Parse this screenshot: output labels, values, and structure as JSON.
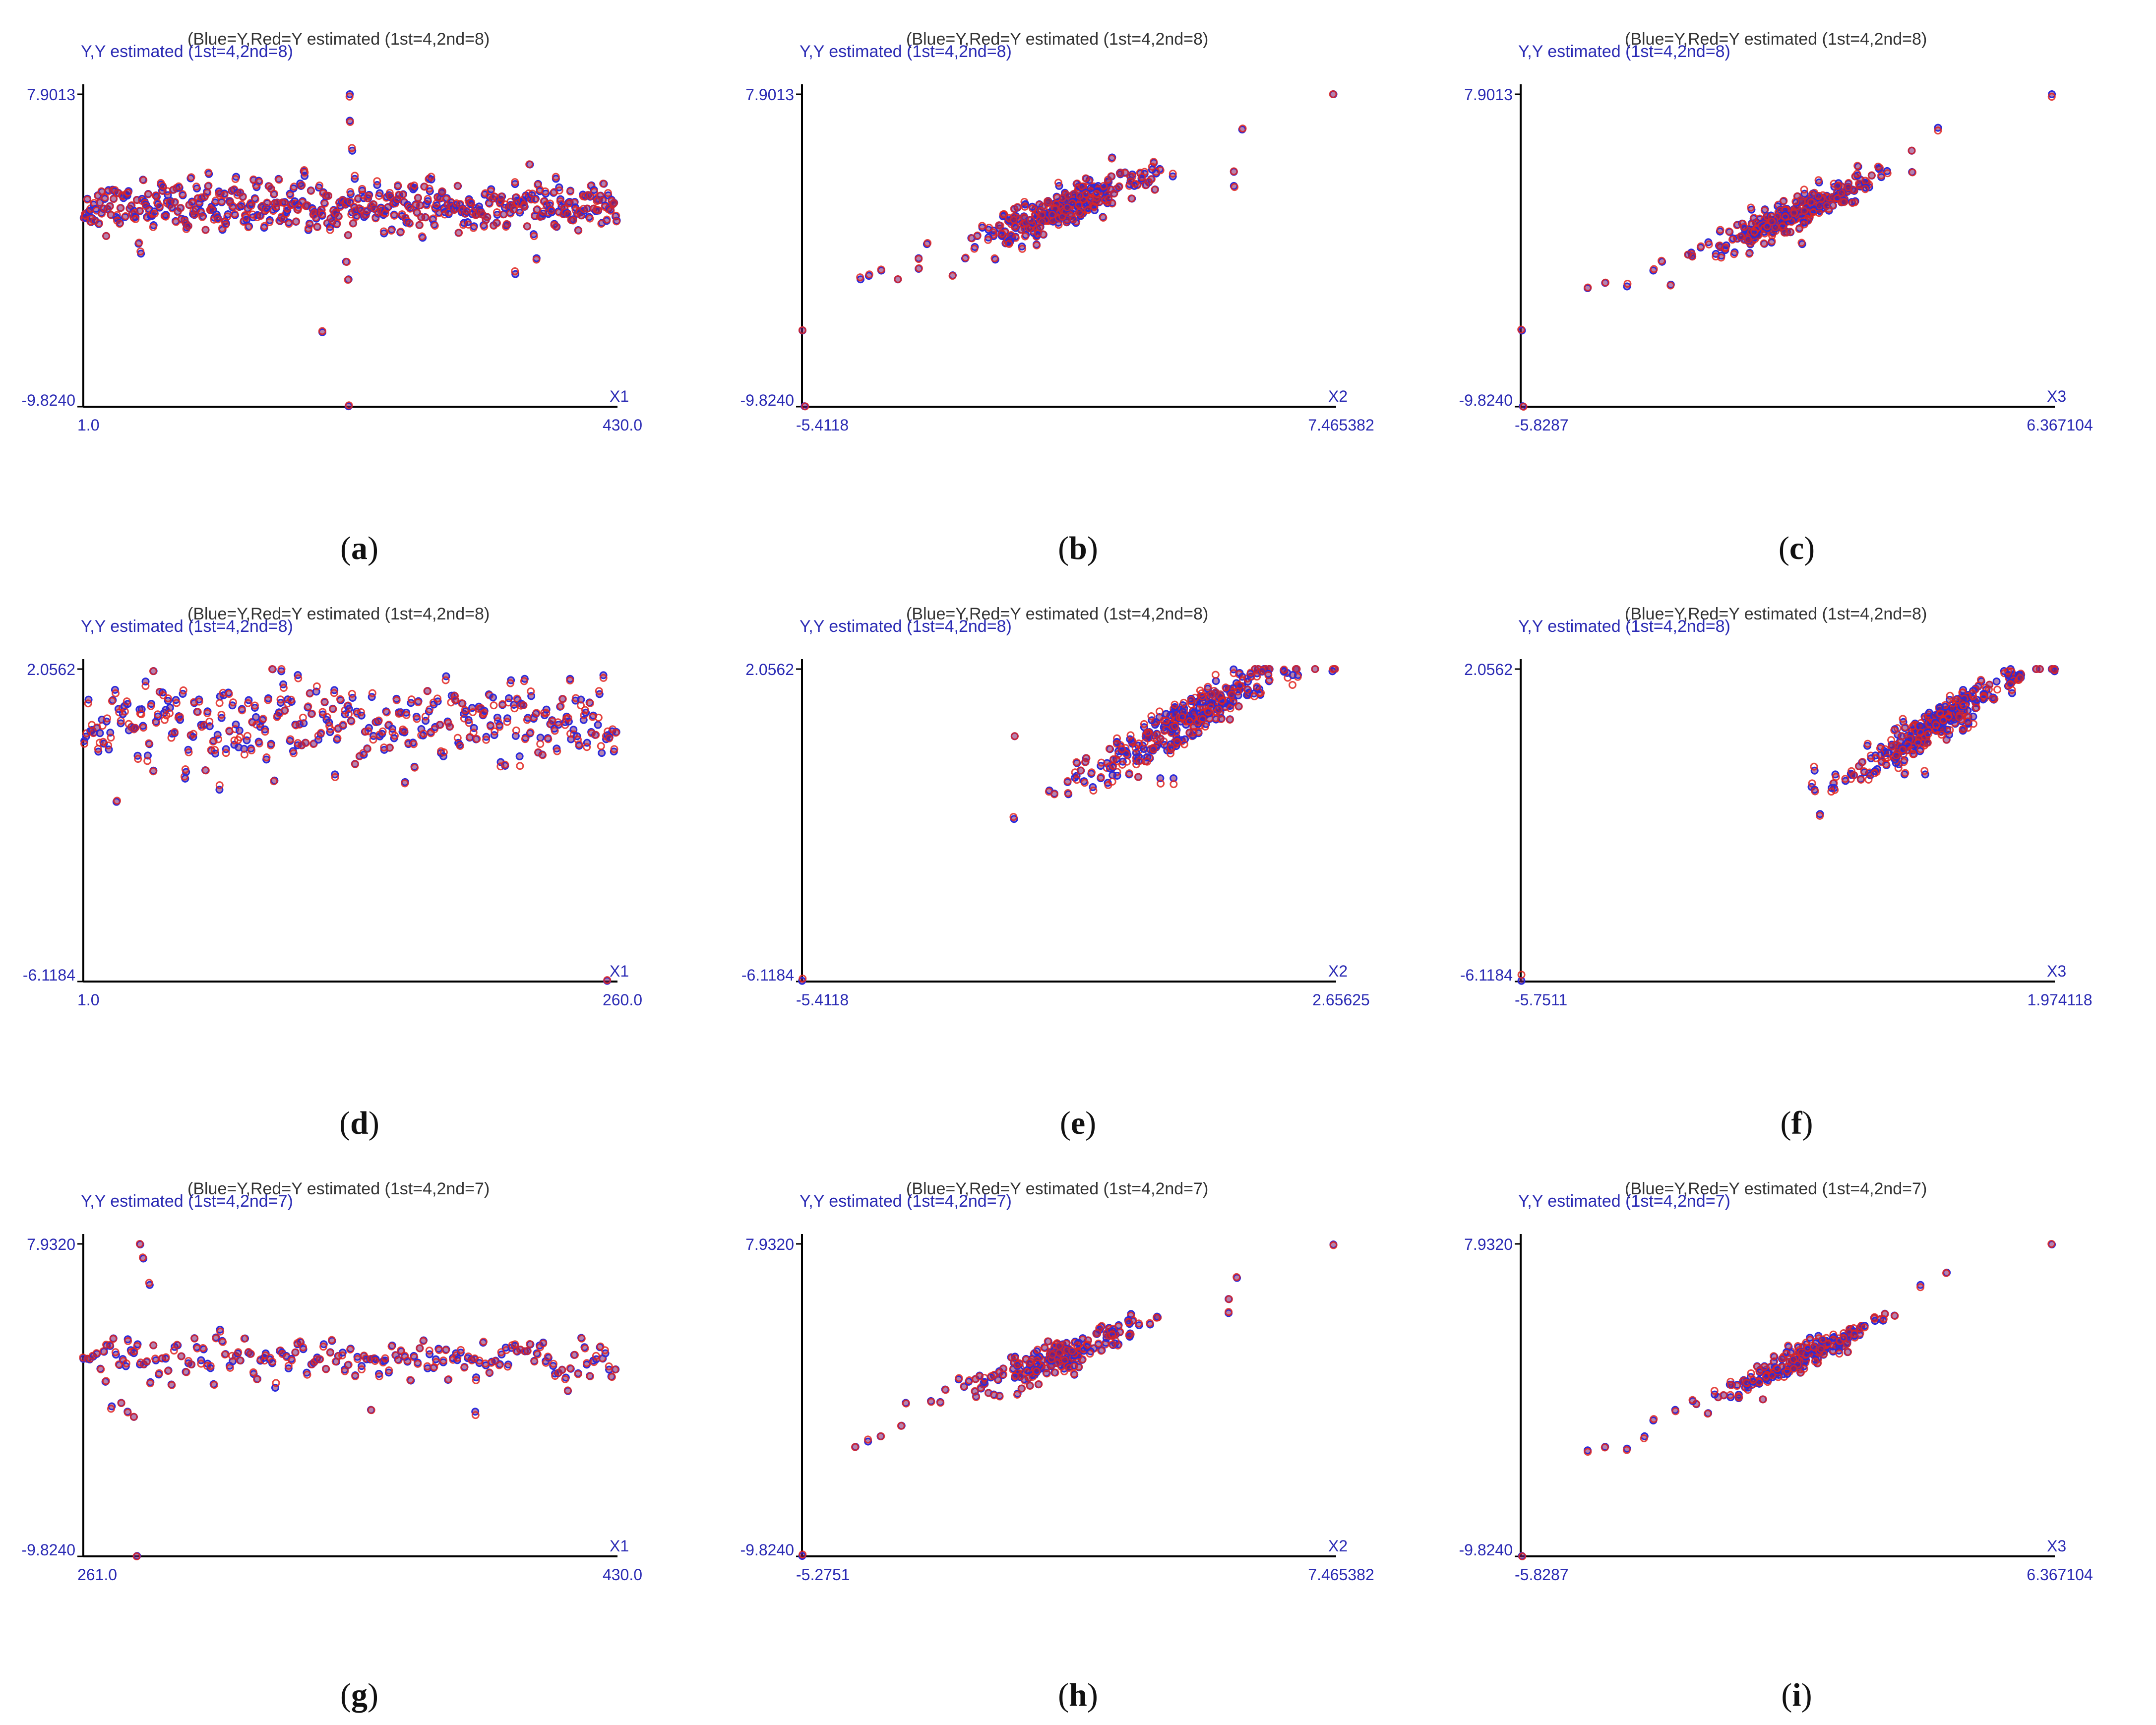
{
  "colors": {
    "axis": "#000000",
    "label": "#2a2ab4",
    "title": "#333333",
    "actual": "#2b2bdc",
    "estimated": "#e0241e",
    "overlap": "#7a1e6e"
  },
  "panels": [
    {
      "caption_open": "(",
      "caption_letter": "a",
      "caption_close": ")",
      "chart_data": {
        "type": "scatter",
        "title": "(Blue=Y,Red=Y estimated (1st=4,2nd=8)",
        "ylabel": "Y,Y estimated (1st=4,2nd=8)",
        "xlabel": "X1",
        "x_min_label": "1.0",
        "x_max_label": "430.0",
        "y_max_label": "7.9013",
        "y_min_label": "-9.8240",
        "xlim": [
          1.0,
          430.0
        ],
        "ylim": [
          -9.824,
          7.9013
        ],
        "kind": "index",
        "n": 430,
        "seed": 11,
        "base": 1.5,
        "spread": 0.7,
        "slope": 0,
        "series": [
          {
            "name": "Y",
            "color": "blue"
          },
          {
            "name": "Y estimated",
            "color": "red"
          }
        ],
        "outliers": [
          [
            215,
            7.9
          ],
          [
            215,
            6.4
          ],
          [
            214,
            -9.8
          ],
          [
            193,
            -5.6
          ],
          [
            217,
            4.7
          ],
          [
            219,
            3.1
          ],
          [
            212,
            -1.6
          ],
          [
            214,
            -2.6
          ],
          [
            348,
            -2.3
          ],
          [
            365,
            -1.4
          ]
        ]
      }
    },
    {
      "caption_open": "(",
      "caption_letter": "b",
      "caption_close": ")",
      "chart_data": {
        "type": "scatter",
        "title": "(Blue=Y,Red=Y estimated (1st=4,2nd=8)",
        "ylabel": "Y,Y estimated (1st=4,2nd=8)",
        "xlabel": "X2",
        "x_min_label": "-5.4118",
        "x_max_label": "7.465382",
        "y_max_label": "7.9013",
        "y_min_label": "-9.8240",
        "xlim": [
          -5.4118,
          7.465382
        ],
        "ylim": [
          -9.824,
          7.9013
        ],
        "kind": "scatter",
        "n": 230,
        "seed": 23,
        "xcenter": 0.8,
        "xspread": 1.0,
        "a": 0.95,
        "b": 0.55,
        "noise": 0.55,
        "series": [
          {
            "name": "Y",
            "color": "blue"
          },
          {
            "name": "Y estimated",
            "color": "red"
          }
        ],
        "outliers": [
          [
            7.4,
            7.9
          ],
          [
            5.2,
            5.9
          ],
          [
            5.0,
            3.5
          ],
          [
            5.0,
            2.7
          ],
          [
            -5.4,
            -5.5
          ],
          [
            -5.35,
            -9.8
          ],
          [
            -4.0,
            -2.6
          ],
          [
            -3.8,
            -2.4
          ],
          [
            -3.5,
            -2.1
          ],
          [
            -3.1,
            -2.6
          ],
          [
            -2.6,
            -1.4
          ],
          [
            -2.4,
            -0.6
          ],
          [
            -2.6,
            -2.0
          ],
          [
            3.1,
            2.5
          ],
          [
            2.6,
            2.7
          ]
        ]
      }
    },
    {
      "caption_open": "(",
      "caption_letter": "c",
      "caption_close": ")",
      "chart_data": {
        "type": "scatter",
        "title": "(Blue=Y,Red=Y estimated (1st=4,2nd=8)",
        "ylabel": "Y,Y estimated (1st=4,2nd=8)",
        "xlabel": "X3",
        "x_min_label": "-5.8287",
        "x_max_label": "6.367104",
        "y_max_label": "7.9013",
        "y_min_label": "-9.8240",
        "xlim": [
          -5.8287,
          6.367104
        ],
        "ylim": [
          -9.824,
          7.9013
        ],
        "kind": "scatter",
        "n": 230,
        "seed": 37,
        "xcenter": 0.5,
        "xspread": 0.9,
        "a": 1.05,
        "b": 0.7,
        "noise": 0.4,
        "series": [
          {
            "name": "Y",
            "color": "blue"
          },
          {
            "name": "Y estimated",
            "color": "red"
          }
        ],
        "outliers": [
          [
            6.3,
            7.9
          ],
          [
            3.7,
            6.0
          ],
          [
            3.1,
            4.7
          ],
          [
            -5.8,
            -5.5
          ],
          [
            -5.78,
            -9.8
          ],
          [
            -4.3,
            -3.1
          ],
          [
            -3.9,
            -2.8
          ],
          [
            -3.4,
            -3.0
          ],
          [
            -2.8,
            -2.1
          ],
          [
            -2.6,
            -1.6
          ],
          [
            -2.4,
            -2.9
          ],
          [
            -2.0,
            -1.2
          ],
          [
            -0.6,
            -1.1
          ],
          [
            0.6,
            -0.6
          ]
        ]
      }
    },
    {
      "caption_open": "(",
      "caption_letter": "d",
      "caption_close": ")",
      "chart_data": {
        "type": "scatter",
        "title": "(Blue=Y,Red=Y estimated (1st=4,2nd=8)",
        "ylabel": "Y,Y estimated (1st=4,2nd=8)",
        "xlabel": "X1",
        "x_min_label": "1.0",
        "x_max_label": "260.0",
        "y_max_label": "2.0562",
        "y_min_label": "-6.1184",
        "xlim": [
          1.0,
          260.0
        ],
        "ylim": [
          -6.1184,
          2.0562
        ],
        "kind": "index",
        "n": 260,
        "seed": 41,
        "base": 0.6,
        "spread": 0.55,
        "slope": 0,
        "series": [
          {
            "name": "Y",
            "color": "blue"
          },
          {
            "name": "Y estimated",
            "color": "red"
          }
        ],
        "outliers": [
          [
            255,
            -6.1
          ],
          [
            97,
            2.0
          ],
          [
            105,
            1.9
          ],
          [
            237,
            1.8
          ],
          [
            215,
            1.8
          ],
          [
            67,
            -1.1
          ],
          [
            157,
            -0.9
          ],
          [
            123,
            -0.7
          ],
          [
            35,
            -0.6
          ]
        ]
      }
    },
    {
      "caption_open": "(",
      "caption_letter": "e",
      "caption_close": ")",
      "chart_data": {
        "type": "scatter",
        "title": "(Blue=Y,Red=Y estimated (1st=4,2nd=8)",
        "ylabel": "Y,Y estimated (1st=4,2nd=8)",
        "xlabel": "X2",
        "x_min_label": "-5.4118",
        "x_max_label": "2.65625",
        "y_max_label": "2.0562",
        "y_min_label": "-6.1184",
        "xlim": [
          -5.4118,
          2.65625
        ],
        "ylim": [
          -6.1184,
          2.0562
        ],
        "kind": "scatter",
        "n": 220,
        "seed": 53,
        "xcenter": 0.35,
        "xspread": 0.75,
        "a": 0.95,
        "b": 0.35,
        "noise": 0.28,
        "series": [
          {
            "name": "Y",
            "color": "blue"
          },
          {
            "name": "Y estimated",
            "color": "red"
          }
        ],
        "outliers": [
          [
            2.6,
            2.0
          ],
          [
            2.0,
            1.9
          ],
          [
            -5.41,
            -6.1
          ],
          [
            -2.2,
            0.3
          ],
          [
            -1.6,
            -1.2
          ],
          [
            -1.4,
            -0.9
          ],
          [
            -1.2,
            -0.6
          ],
          [
            -0.9,
            -0.8
          ],
          [
            0.0,
            -0.8
          ],
          [
            0.2,
            -0.8
          ]
        ]
      }
    },
    {
      "caption_open": "(",
      "caption_letter": "f",
      "caption_close": ")",
      "chart_data": {
        "type": "scatter",
        "title": "(Blue=Y,Red=Y estimated (1st=4,2nd=8)",
        "ylabel": "Y,Y estimated (1st=4,2nd=8)",
        "xlabel": "X3",
        "x_min_label": "-5.7511",
        "x_max_label": "1.974118",
        "y_max_label": "2.0562",
        "y_min_label": "-6.1184",
        "xlim": [
          -5.7511,
          1.974118
        ],
        "ylim": [
          -6.1184,
          2.0562
        ],
        "kind": "scatter",
        "n": 220,
        "seed": 67,
        "xcenter": 0.2,
        "xspread": 0.65,
        "a": 1.1,
        "b": 0.35,
        "noise": 0.22,
        "series": [
          {
            "name": "Y",
            "color": "blue"
          },
          {
            "name": "Y estimated",
            "color": "red"
          }
        ],
        "outliers": [
          [
            1.97,
            2.0
          ],
          [
            1.3,
            1.9
          ],
          [
            -5.74,
            -6.1
          ],
          [
            -1.5,
            -0.6
          ],
          [
            -1.5,
            -1.1
          ],
          [
            -1.2,
            -0.7
          ],
          [
            -0.2,
            -0.7
          ],
          [
            0.1,
            -0.7
          ]
        ]
      }
    },
    {
      "caption_open": "(",
      "caption_letter": "g",
      "caption_close": ")",
      "chart_data": {
        "type": "scatter",
        "title": "(Blue=Y,Red=Y estimated (1st=4,2nd=7)",
        "ylabel": "Y,Y estimated (1st=4,2nd=7)",
        "xlabel": "X1",
        "x_min_label": "261.0",
        "x_max_label": "430.0",
        "y_max_label": "7.9320",
        "y_min_label": "-9.8240",
        "xlim": [
          261.0,
          430.0
        ],
        "ylim": [
          -9.824,
          7.932
        ],
        "kind": "index",
        "n": 170,
        "seed": 79,
        "base": 1.4,
        "spread": 0.65,
        "slope": 0,
        "series": [
          {
            "name": "Y",
            "color": "blue"
          },
          {
            "name": "Y estimated",
            "color": "red"
          }
        ],
        "outliers": [
          [
            279,
            7.9
          ],
          [
            280,
            7.1
          ],
          [
            282,
            5.6
          ],
          [
            278,
            -9.8
          ],
          [
            273,
            -1.1
          ],
          [
            275,
            -1.6
          ],
          [
            277,
            -1.9
          ],
          [
            270,
            -1.3
          ],
          [
            268,
            0.1
          ],
          [
            385,
            -1.6
          ],
          [
            352,
            -1.5
          ]
        ]
      }
    },
    {
      "caption_open": "(",
      "caption_letter": "h",
      "caption_close": ")",
      "chart_data": {
        "type": "scatter",
        "title": "(Blue=Y,Red=Y estimated (1st=4,2nd=7)",
        "ylabel": "Y,Y estimated (1st=4,2nd=7)",
        "xlabel": "X2",
        "x_min_label": "-5.2751",
        "x_max_label": "7.465382",
        "y_max_label": "7.9320",
        "y_min_label": "-9.8240",
        "xlim": [
          -5.2751,
          7.465382
        ],
        "ylim": [
          -9.824,
          7.932
        ],
        "kind": "scatter",
        "n": 170,
        "seed": 89,
        "xcenter": 0.7,
        "xspread": 1.0,
        "a": 0.95,
        "b": 0.75,
        "noise": 0.45,
        "series": [
          {
            "name": "Y",
            "color": "blue"
          },
          {
            "name": "Y estimated",
            "color": "red"
          }
        ],
        "outliers": [
          [
            7.4,
            7.9
          ],
          [
            5.1,
            6.0
          ],
          [
            4.9,
            4.8
          ],
          [
            4.9,
            4.0
          ],
          [
            -5.27,
            -9.8
          ],
          [
            -4.0,
            -3.6
          ],
          [
            -3.7,
            -3.3
          ],
          [
            -3.4,
            -3.0
          ],
          [
            -2.9,
            -2.4
          ],
          [
            -2.8,
            -1.1
          ],
          [
            -2.2,
            -1.0
          ],
          [
            -1.3,
            0.1
          ]
        ]
      }
    },
    {
      "caption_open": "(",
      "caption_letter": "i",
      "caption_close": ")",
      "chart_data": {
        "type": "scatter",
        "title": "(Blue=Y,Red=Y estimated (1st=4,2nd=7)",
        "ylabel": "Y,Y estimated (1st=4,2nd=7)",
        "xlabel": "X3",
        "x_min_label": "-5.8287",
        "x_max_label": "6.367104",
        "y_max_label": "7.9320",
        "y_min_label": "-9.8240",
        "xlim": [
          -5.8287,
          6.367104
        ],
        "ylim": [
          -9.824,
          7.932
        ],
        "kind": "scatter",
        "n": 170,
        "seed": 97,
        "xcenter": 0.5,
        "xspread": 0.9,
        "a": 1.1,
        "b": 0.8,
        "noise": 0.35,
        "series": [
          {
            "name": "Y",
            "color": "blue"
          },
          {
            "name": "Y estimated",
            "color": "red"
          }
        ],
        "outliers": [
          [
            6.3,
            7.9
          ],
          [
            3.9,
            6.3
          ],
          [
            3.3,
            5.6
          ],
          [
            -5.8,
            -9.8
          ],
          [
            -4.3,
            -3.8
          ],
          [
            -3.9,
            -3.6
          ],
          [
            -3.4,
            -3.7
          ],
          [
            -3.0,
            -3.0
          ],
          [
            -2.8,
            -2.1
          ],
          [
            -2.3,
            -1.5
          ],
          [
            -1.9,
            -1.0
          ],
          [
            -0.3,
            -0.9
          ]
        ]
      }
    }
  ]
}
